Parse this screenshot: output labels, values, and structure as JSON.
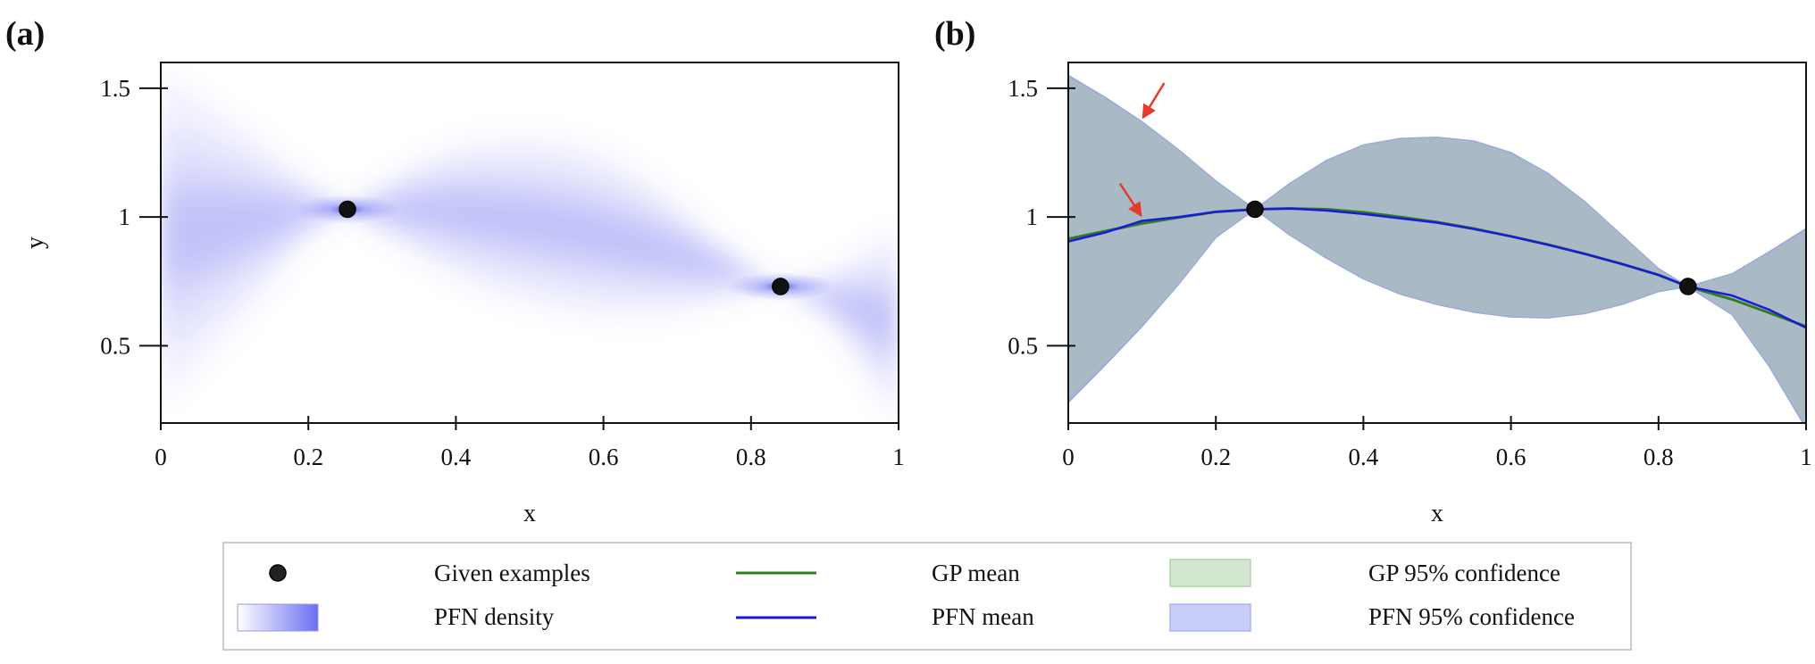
{
  "chart_data": [
    {
      "panel": "(a)",
      "type": "heatmap",
      "xlabel": "x",
      "ylabel": "y",
      "xlim": [
        0,
        1
      ],
      "ylim": [
        0.2,
        1.6
      ],
      "xticks": [
        "0",
        "0.2",
        "0.4",
        "0.6",
        "0.8",
        "1"
      ],
      "yticks": [
        "0.5",
        "1",
        "1.5"
      ],
      "examples": [
        {
          "x": 0.253,
          "y": 1.03
        },
        {
          "x": 0.84,
          "y": 0.73
        }
      ],
      "density_color": "#6a6ff2"
    },
    {
      "panel": "(b)",
      "type": "line",
      "xlabel": "x",
      "ylabel": "",
      "xlim": [
        0,
        1
      ],
      "ylim": [
        0.2,
        1.6
      ],
      "xticks": [
        "0",
        "0.2",
        "0.4",
        "0.6",
        "0.8",
        "1"
      ],
      "yticks": [
        "0.5",
        "1",
        "1.5"
      ],
      "examples": [
        {
          "x": 0.253,
          "y": 1.03
        },
        {
          "x": 0.84,
          "y": 0.73
        }
      ],
      "x": [
        0,
        0.05,
        0.1,
        0.15,
        0.2,
        0.253,
        0.3,
        0.35,
        0.4,
        0.45,
        0.5,
        0.55,
        0.6,
        0.65,
        0.7,
        0.75,
        0.8,
        0.84,
        0.9,
        0.95,
        1.0
      ],
      "series": [
        {
          "name": "GP mean",
          "color": "#2e7d1f",
          "values": [
            0.915,
            0.945,
            0.975,
            0.998,
            1.02,
            1.03,
            1.033,
            1.03,
            1.018,
            1.0,
            0.98,
            0.955,
            0.925,
            0.893,
            0.857,
            0.818,
            0.775,
            0.73,
            0.68,
            0.628,
            0.575
          ]
        },
        {
          "name": "PFN mean",
          "color": "#1a1adb",
          "values": [
            0.905,
            0.94,
            0.985,
            1.0,
            1.02,
            1.03,
            1.033,
            1.025,
            1.012,
            0.995,
            0.978,
            0.953,
            0.925,
            0.892,
            0.857,
            0.818,
            0.775,
            0.73,
            0.695,
            0.64,
            0.57
          ]
        },
        {
          "name": "GP 95% confidence",
          "color": "#b4d2ac",
          "upper": [
            1.54,
            1.46,
            1.37,
            1.26,
            1.14,
            1.03,
            1.13,
            1.22,
            1.28,
            1.305,
            1.31,
            1.295,
            1.25,
            1.17,
            1.06,
            0.93,
            0.8,
            0.73,
            0.78,
            0.86,
            0.95
          ],
          "lower": [
            0.29,
            0.43,
            0.58,
            0.74,
            0.92,
            1.03,
            0.93,
            0.84,
            0.76,
            0.7,
            0.66,
            0.63,
            0.612,
            0.608,
            0.625,
            0.66,
            0.71,
            0.73,
            0.62,
            0.42,
            0.19
          ]
        },
        {
          "name": "PFN 95% confidence",
          "color": "#a9b4f0",
          "upper": [
            1.55,
            1.465,
            1.37,
            1.26,
            1.14,
            1.03,
            1.13,
            1.22,
            1.28,
            1.305,
            1.31,
            1.295,
            1.25,
            1.17,
            1.06,
            0.93,
            0.8,
            0.73,
            0.78,
            0.865,
            0.955
          ],
          "lower": [
            0.28,
            0.425,
            0.575,
            0.74,
            0.92,
            1.03,
            0.93,
            0.84,
            0.76,
            0.7,
            0.66,
            0.63,
            0.612,
            0.608,
            0.625,
            0.66,
            0.71,
            0.73,
            0.62,
            0.42,
            0.18
          ]
        }
      ],
      "annotations": [
        {
          "type": "arrow",
          "color": "#e53b2a",
          "from": {
            "x": 0.13,
            "y": 1.52
          },
          "to": {
            "x": 0.1,
            "y": 1.38
          }
        },
        {
          "type": "arrow",
          "color": "#e53b2a",
          "from": {
            "x": 0.07,
            "y": 1.13
          },
          "to": {
            "x": 0.1,
            "y": 1.0
          }
        }
      ]
    }
  ],
  "legend": {
    "items": [
      {
        "key": "examples",
        "label": "Given examples"
      },
      {
        "key": "gp_mean",
        "label": "GP mean"
      },
      {
        "key": "gp_conf",
        "label": "GP 95% confidence"
      },
      {
        "key": "pfn_density",
        "label": "PFN density"
      },
      {
        "key": "pfn_mean",
        "label": "PFN mean"
      },
      {
        "key": "pfn_conf",
        "label": "PFN 95% confidence"
      }
    ]
  }
}
